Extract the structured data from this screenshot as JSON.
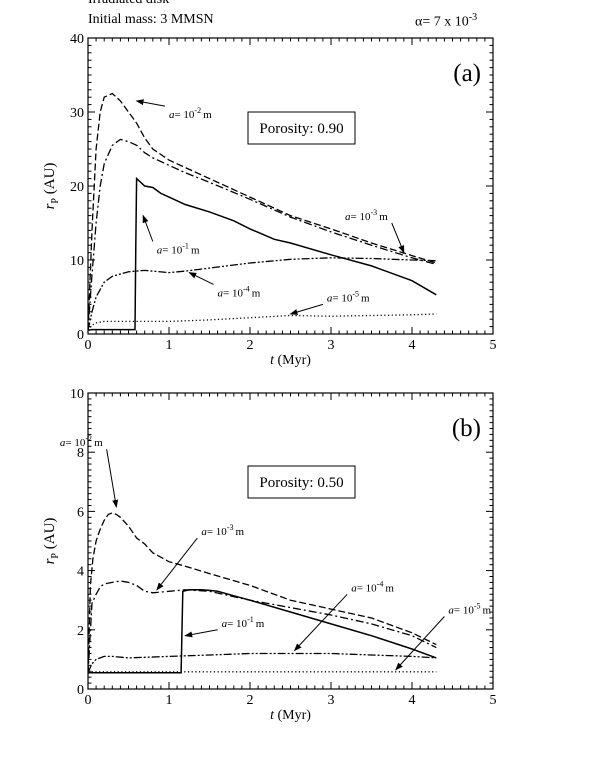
{
  "header": {
    "line1": "Irradiated disk",
    "line2": "Initial mass: 3 MMSN",
    "alpha": "α= 7 x 10",
    "alpha_exp": "-3"
  },
  "chart_data": [
    {
      "type": "line",
      "panel_label": "(a)",
      "box_label": "Porosity: 0.90",
      "xlabel": "t (Myr)",
      "ylabel": "r_P (AU)",
      "xlim": [
        0,
        5
      ],
      "ylim": [
        0,
        40
      ],
      "xticks": [
        0,
        1,
        2,
        3,
        4,
        5
      ],
      "yticks": [
        0,
        10,
        20,
        30,
        40
      ],
      "series": [
        {
          "name": "a= 10^-2 m",
          "style": "dashed",
          "x": [
            0,
            0.05,
            0.1,
            0.15,
            0.2,
            0.3,
            0.4,
            0.5,
            0.6,
            0.7,
            0.8,
            1.0,
            1.2,
            1.5,
            2.0,
            2.5,
            3.0,
            3.5,
            4.0,
            4.3
          ],
          "y": [
            0.5,
            14,
            25,
            30,
            32,
            32.5,
            31.5,
            30,
            28.5,
            26.5,
            25,
            23.5,
            22.5,
            21,
            18.5,
            16,
            14.2,
            12.3,
            10.6,
            9.6
          ]
        },
        {
          "name": "a= 10^-3 m",
          "style": "dashdot",
          "x": [
            0,
            0.05,
            0.1,
            0.15,
            0.2,
            0.3,
            0.4,
            0.5,
            0.6,
            0.7,
            0.8,
            1.0,
            1.2,
            1.5,
            2.0,
            2.5,
            3.0,
            3.5,
            4.0,
            4.3
          ],
          "y": [
            0.5,
            8,
            15,
            20,
            23,
            25.5,
            26.3,
            26,
            25.5,
            24.5,
            23.8,
            22.8,
            21.8,
            20.5,
            18.2,
            15.8,
            13.8,
            12,
            10.3,
            9.4
          ]
        },
        {
          "name": "a= 10^-1 m",
          "style": "solid",
          "x": [
            0,
            0.05,
            0.1,
            0.58,
            0.59,
            0.6,
            0.65,
            0.7,
            0.8,
            0.9,
            1.0,
            1.2,
            1.5,
            1.8,
            2.0,
            2.3,
            2.5,
            3.0,
            3.5,
            4.0,
            4.3
          ],
          "y": [
            0.5,
            0.6,
            0.6,
            0.6,
            12,
            21,
            20.5,
            20,
            19.8,
            19,
            18.5,
            17.5,
            16.5,
            15.3,
            14.2,
            12.8,
            12.3,
            10.7,
            9.2,
            7.2,
            5.3
          ]
        },
        {
          "name": "a= 10^-4 m",
          "style": "dashdotdot",
          "x": [
            0,
            0.05,
            0.1,
            0.2,
            0.3,
            0.5,
            0.7,
            1.0,
            1.2,
            1.5,
            2.0,
            2.5,
            3.0,
            3.5,
            4.0,
            4.3
          ],
          "y": [
            0.5,
            3,
            5,
            7,
            7.8,
            8.4,
            8.6,
            8.3,
            8.5,
            8.9,
            9.6,
            10.1,
            10.3,
            10.2,
            10.0,
            9.9
          ]
        },
        {
          "name": "a= 10^-5 m",
          "style": "dotted",
          "x": [
            0,
            0.05,
            0.1,
            0.2,
            0.5,
            1.0,
            1.5,
            2.0,
            2.5,
            3.0,
            3.5,
            4.0,
            4.3
          ],
          "y": [
            0.5,
            1.2,
            1.5,
            1.7,
            1.7,
            1.7,
            1.9,
            2.2,
            2.5,
            2.4,
            2.5,
            2.6,
            2.7
          ]
        }
      ],
      "annotations": [
        {
          "label": "a= 10",
          "exp": "-2",
          "unit": "m",
          "lx": 0.95,
          "ly": 30.8,
          "tx": 0.6,
          "ty": 31.5
        },
        {
          "label": "a= 10",
          "exp": "-3",
          "unit": "m",
          "lx": 3.75,
          "ly": 15.0,
          "tx": 3.9,
          "ty": 11.0
        },
        {
          "label": "a= 10",
          "exp": "-1",
          "unit": "m",
          "lx": 0.8,
          "ly": 12.5,
          "tx": 0.68,
          "ty": 16.0
        },
        {
          "label": "a= 10",
          "exp": "-4",
          "unit": "m",
          "lx": 1.55,
          "ly": 6.7,
          "tx": 1.25,
          "ty": 8.3
        },
        {
          "label": "a= 10",
          "exp": "-5",
          "unit": "m",
          "lx": 2.9,
          "ly": 4.0,
          "tx": 2.5,
          "ty": 2.7
        }
      ]
    },
    {
      "type": "line",
      "panel_label": "(b)",
      "box_label": "Porosity: 0.50",
      "xlabel": "t (Myr)",
      "ylabel": "r_P (AU)",
      "xlim": [
        0,
        5
      ],
      "ylim": [
        0,
        10
      ],
      "xticks": [
        0,
        1,
        2,
        3,
        4,
        5
      ],
      "yticks": [
        0,
        2,
        4,
        6,
        8,
        10
      ],
      "series": [
        {
          "name": "a= 10^-2 m",
          "style": "dashed",
          "x": [
            0,
            0.03,
            0.06,
            0.1,
            0.15,
            0.2,
            0.25,
            0.3,
            0.35,
            0.4,
            0.5,
            0.6,
            0.7,
            0.8,
            1.0,
            1.2,
            1.5,
            2.0,
            2.5,
            3.0,
            3.5,
            4.0,
            4.3
          ],
          "y": [
            0.5,
            3.5,
            4.4,
            5.0,
            5.4,
            5.7,
            5.9,
            5.95,
            5.9,
            5.8,
            5.5,
            5.1,
            4.9,
            4.6,
            4.3,
            4.15,
            3.9,
            3.5,
            3.0,
            2.7,
            2.4,
            1.9,
            1.5
          ]
        },
        {
          "name": "a= 10^-3 m",
          "style": "dashdot",
          "x": [
            0,
            0.05,
            0.1,
            0.15,
            0.2,
            0.3,
            0.4,
            0.5,
            0.6,
            0.7,
            0.8,
            1.0,
            1.2,
            1.5,
            2.0,
            2.5,
            3.0,
            3.5,
            4.0,
            4.3
          ],
          "y": [
            0.5,
            2.9,
            3.2,
            3.45,
            3.55,
            3.6,
            3.65,
            3.6,
            3.5,
            3.3,
            3.25,
            3.3,
            3.35,
            3.3,
            3.0,
            2.75,
            2.5,
            2.2,
            1.8,
            1.4
          ]
        },
        {
          "name": "a= 10^-1 m",
          "style": "solid",
          "x": [
            0,
            0.05,
            1.15,
            1.16,
            1.17,
            1.25,
            1.4,
            1.5,
            1.6,
            1.8,
            2.0,
            2.5,
            3.0,
            3.5,
            4.0,
            4.3
          ],
          "y": [
            0.55,
            0.55,
            0.55,
            2.0,
            3.3,
            3.35,
            3.35,
            3.33,
            3.3,
            3.15,
            3.0,
            2.6,
            2.2,
            1.8,
            1.35,
            1.05
          ]
        },
        {
          "name": "a= 10^-4 m",
          "style": "dashdotdot",
          "x": [
            0,
            0.05,
            0.1,
            0.2,
            0.3,
            0.5,
            0.7,
            1.0,
            1.5,
            2.0,
            2.5,
            3.0,
            3.5,
            4.0,
            4.3
          ],
          "y": [
            0.55,
            0.85,
            1.0,
            1.1,
            1.1,
            1.05,
            1.07,
            1.1,
            1.15,
            1.2,
            1.2,
            1.2,
            1.15,
            1.1,
            1.05
          ]
        },
        {
          "name": "a= 10^-5 m",
          "style": "dotted",
          "x": [
            0,
            4.3
          ],
          "y": [
            0.58,
            0.58
          ]
        }
      ],
      "annotations": [
        {
          "label": "a= 10",
          "exp": "-2",
          "unit": "m",
          "lx": 0.23,
          "ly": 8.1,
          "tx": 0.35,
          "ty": 6.15
        },
        {
          "label": "a= 10",
          "exp": "-3",
          "unit": "m",
          "lx": 1.35,
          "ly": 5.1,
          "tx": 0.85,
          "ty": 3.35
        },
        {
          "label": "a= 10",
          "exp": "-1",
          "unit": "m",
          "lx": 1.6,
          "ly": 2.0,
          "tx": 1.2,
          "ty": 1.8
        },
        {
          "label": "a= 10",
          "exp": "-4",
          "unit": "m",
          "lx": 3.2,
          "ly": 3.2,
          "tx": 2.55,
          "ty": 1.3
        },
        {
          "label": "a= 10",
          "exp": "-5",
          "unit": "m",
          "lx": 4.4,
          "ly": 2.45,
          "tx": 3.8,
          "ty": 0.65
        }
      ]
    }
  ]
}
